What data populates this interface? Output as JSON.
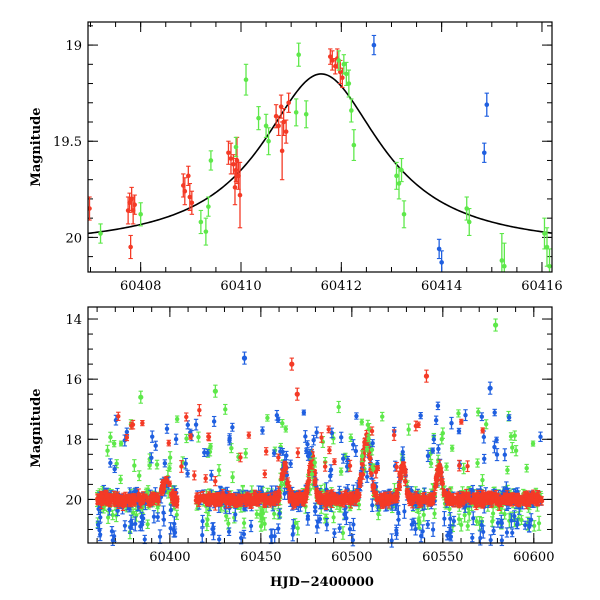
{
  "colors": {
    "red": "#f43a26",
    "green": "#5ee84a",
    "blue": "#1f5fe0",
    "model": "#000000"
  },
  "chart_data": [
    {
      "type": "scatter",
      "xlabel": "",
      "ylabel": "Magnitude",
      "xlim": [
        60406.95,
        60416.2
      ],
      "ylim": [
        20.18,
        18.88
      ],
      "y_inverted": true,
      "x_ticks_major": [
        60408,
        60410,
        60412,
        60414,
        60416
      ],
      "x_tick_labels": [
        "60408",
        "60410",
        "60412",
        "60414",
        "60416"
      ],
      "y_ticks_major": [
        19,
        19.5,
        20
      ],
      "y_tick_labels": [
        "19",
        "19.5",
        "20"
      ],
      "model_curve": {
        "type": "line",
        "baseline": 20.06,
        "peak_x": 60411.6,
        "peak_y": 19.15,
        "width": 1.45
      },
      "series": [
        {
          "color_key": "red",
          "points": [
            [
              60406.98,
              19.85,
              0.06
            ],
            [
              60407.75,
              19.86,
              0.07
            ],
            [
              60407.78,
              19.82,
              0.05
            ],
            [
              60407.82,
              19.8,
              0.06
            ],
            [
              60407.85,
              19.86,
              0.07
            ],
            [
              60407.88,
              19.83,
              0.05
            ],
            [
              60407.8,
              20.05,
              0.06
            ],
            [
              60408.85,
              19.73,
              0.06
            ],
            [
              60408.88,
              19.76,
              0.07
            ],
            [
              60408.95,
              19.68,
              0.05
            ],
            [
              60408.98,
              19.79,
              0.07
            ],
            [
              60409.02,
              19.82,
              0.06
            ],
            [
              60409.75,
              19.56,
              0.06
            ],
            [
              60409.8,
              19.59,
              0.08
            ],
            [
              60409.85,
              19.62,
              0.05
            ],
            [
              60409.9,
              19.65,
              0.06
            ],
            [
              60409.95,
              19.68,
              0.07
            ],
            [
              60409.88,
              19.74,
              0.09
            ],
            [
              60409.92,
              19.6,
              0.12
            ],
            [
              60409.98,
              19.78,
              0.17
            ],
            [
              60410.7,
              19.37,
              0.06
            ],
            [
              60410.75,
              19.42,
              0.05
            ],
            [
              60410.8,
              19.32,
              0.06
            ],
            [
              60410.85,
              19.4,
              0.07
            ],
            [
              60410.9,
              19.45,
              0.06
            ],
            [
              60410.82,
              19.55,
              0.15
            ],
            [
              60410.95,
              19.3,
              0.05
            ],
            [
              60411.78,
              19.06,
              0.04
            ],
            [
              60411.82,
              19.08,
              0.05
            ],
            [
              60411.88,
              19.11,
              0.04
            ],
            [
              60411.92,
              19.07,
              0.05
            ],
            [
              60411.98,
              19.14,
              0.06
            ],
            [
              60412.02,
              19.17,
              0.05
            ]
          ]
        },
        {
          "color_key": "green",
          "points": [
            [
              60407.2,
              19.98,
              0.05
            ],
            [
              60408.0,
              19.88,
              0.06
            ],
            [
              60409.2,
              19.92,
              0.06
            ],
            [
              60409.3,
              19.97,
              0.07
            ],
            [
              60409.35,
              19.84,
              0.05
            ],
            [
              60409.4,
              19.6,
              0.05
            ],
            [
              60409.9,
              19.53,
              0.05
            ],
            [
              60410.1,
              19.18,
              0.08
            ],
            [
              60410.35,
              19.38,
              0.06
            ],
            [
              60410.5,
              19.42,
              0.06
            ],
            [
              60410.55,
              19.5,
              0.07
            ],
            [
              60411.1,
              19.35,
              0.07
            ],
            [
              60411.15,
              19.05,
              0.06
            ],
            [
              60411.3,
              19.36,
              0.07
            ],
            [
              60411.95,
              19.08,
              0.05
            ],
            [
              60412.05,
              19.1,
              0.05
            ],
            [
              60412.1,
              19.15,
              0.06
            ],
            [
              60412.15,
              19.2,
              0.07
            ],
            [
              60412.2,
              19.34,
              0.06
            ],
            [
              60412.25,
              19.52,
              0.08
            ],
            [
              60413.1,
              19.68,
              0.07
            ],
            [
              60413.15,
              19.72,
              0.08
            ],
            [
              60413.2,
              19.65,
              0.06
            ],
            [
              60413.25,
              19.88,
              0.07
            ],
            [
              60414.5,
              19.85,
              0.06
            ],
            [
              60414.55,
              19.92,
              0.07
            ],
            [
              60415.2,
              20.12,
              0.14
            ],
            [
              60415.25,
              20.15,
              0.12
            ],
            [
              60416.05,
              19.98,
              0.08
            ],
            [
              60416.1,
              20.05,
              0.1
            ],
            [
              60416.15,
              20.15,
              0.09
            ]
          ]
        },
        {
          "color_key": "blue",
          "points": [
            [
              60412.65,
              19.0,
              0.05
            ],
            [
              60413.95,
              20.06,
              0.05
            ],
            [
              60414.0,
              20.13,
              0.06
            ],
            [
              60414.85,
              19.56,
              0.05
            ],
            [
              60414.9,
              19.31,
              0.06
            ]
          ]
        }
      ]
    },
    {
      "type": "scatter",
      "xlabel": "HJD−2400000",
      "ylabel": "Magnitude",
      "xlim": [
        60355,
        60610
      ],
      "ylim": [
        21.45,
        13.6
      ],
      "y_inverted": true,
      "x_ticks_major": [
        60400,
        60450,
        60500,
        60550,
        60600
      ],
      "x_tick_labels": [
        "60400",
        "60450",
        "60500",
        "60550",
        "60600"
      ],
      "y_ticks_major": [
        14,
        16,
        18,
        20
      ],
      "y_tick_labels": [
        "14",
        "16",
        "18",
        "20"
      ],
      "band": {
        "x_start": 60360,
        "x_end": 60605,
        "base": 20.0,
        "spread": 0.3
      },
      "flares": [
        {
          "x": 60398,
          "peak": 19.45,
          "width": 3
        },
        {
          "x": 60463,
          "peak": 18.9,
          "width": 2
        },
        {
          "x": 60478,
          "peak": 18.6,
          "width": 2
        },
        {
          "x": 60508,
          "peak": 18.0,
          "width": 3
        },
        {
          "x": 60528,
          "peak": 18.8,
          "width": 2
        },
        {
          "x": 60548,
          "peak": 18.9,
          "width": 2
        }
      ],
      "outliers": [
        {
          "color_key": "blue",
          "x": 60441,
          "y": 15.3
        },
        {
          "color_key": "red",
          "x": 60467,
          "y": 15.5
        },
        {
          "color_key": "red",
          "x": 60541,
          "y": 15.9
        },
        {
          "color_key": "green",
          "x": 60579,
          "y": 14.2
        },
        {
          "color_key": "blue",
          "x": 60576,
          "y": 16.3
        },
        {
          "color_key": "green",
          "x": 60425,
          "y": 16.4
        },
        {
          "color_key": "green",
          "x": 60384,
          "y": 16.6
        },
        {
          "color_key": "red",
          "x": 60470,
          "y": 16.5
        }
      ],
      "upper_scatter_range": [
        16.8,
        19.0
      ]
    }
  ]
}
